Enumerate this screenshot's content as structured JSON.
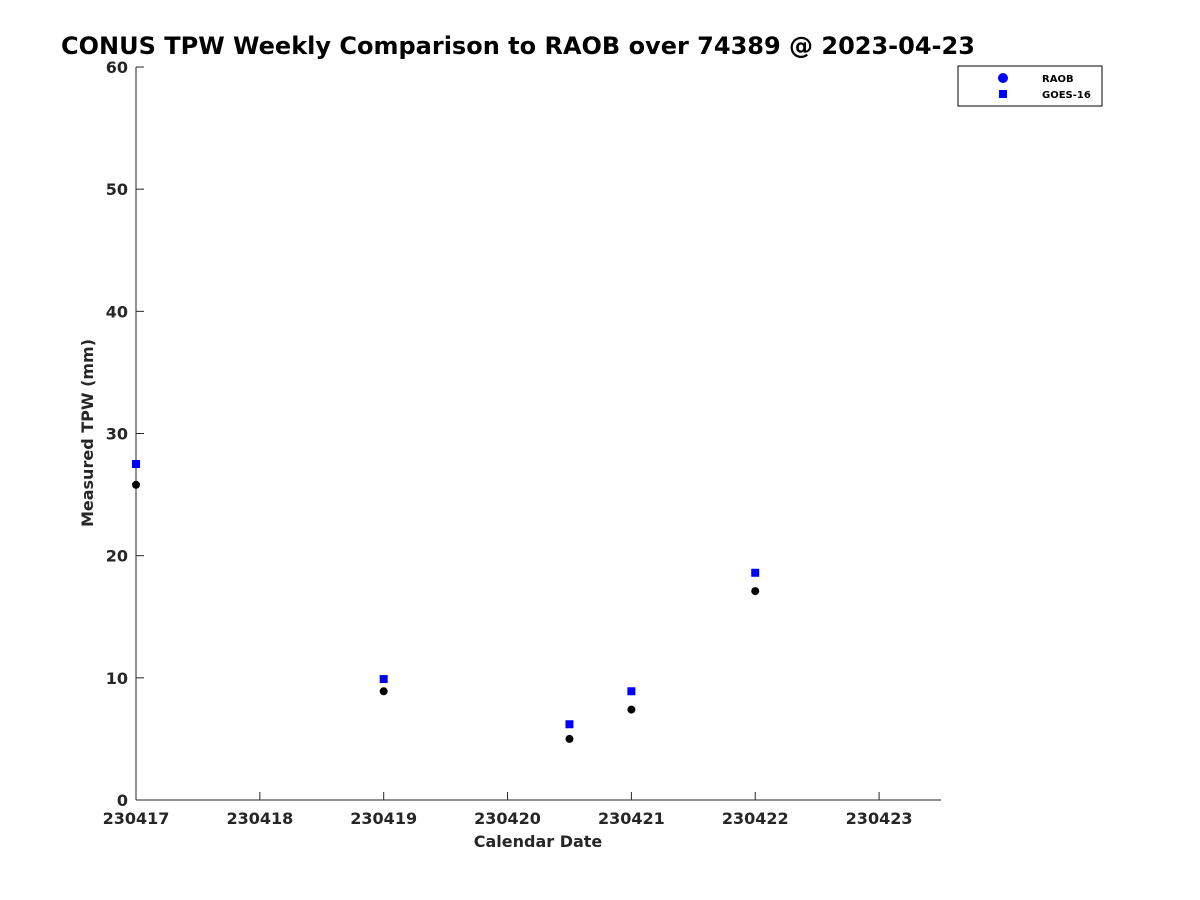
{
  "chart_data": {
    "type": "scatter",
    "title": "CONUS TPW Weekly Comparison to RAOB over 74389 @ 2023-04-23",
    "xlabel": "Calendar Date",
    "ylabel": "Measured TPW (mm)",
    "xlim": [
      230417,
      230423.5
    ],
    "ylim": [
      0,
      60
    ],
    "x_ticks": [
      230417,
      230418,
      230419,
      230420,
      230421,
      230422,
      230423
    ],
    "x_tick_labels": [
      "230417",
      "230418",
      "230419",
      "230420",
      "230421",
      "230422",
      "230423"
    ],
    "y_ticks": [
      0,
      10,
      20,
      30,
      40,
      50,
      60
    ],
    "y_tick_labels": [
      "0",
      "10",
      "20",
      "30",
      "40",
      "50",
      "60"
    ],
    "grid": false,
    "legend_position": "top-right",
    "series": [
      {
        "name": "RAOB",
        "marker": "circle",
        "legend_color": "#0000ff",
        "color": "#000000",
        "x": [
          230417,
          230419,
          230420.5,
          230421,
          230422
        ],
        "values": [
          25.8,
          8.9,
          5.0,
          7.4,
          17.1
        ]
      },
      {
        "name": "GOES-16",
        "marker": "square",
        "legend_color": "#0000ff",
        "color": "#0000ff",
        "x": [
          230417,
          230419,
          230420.5,
          230421,
          230422
        ],
        "values": [
          27.5,
          9.9,
          6.2,
          8.9,
          18.6
        ]
      }
    ]
  }
}
